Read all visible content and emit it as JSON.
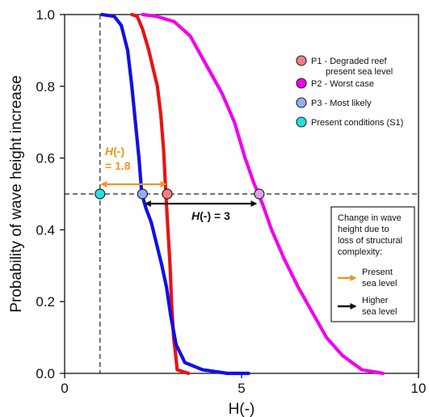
{
  "chart_data": {
    "type": "line",
    "title": "",
    "xlabel": "H(-)",
    "ylabel": "Probability of wave height increase",
    "xlim": [
      0,
      10
    ],
    "ylim": [
      0,
      1.0
    ],
    "xticks": [
      "0",
      "5",
      "10"
    ],
    "yticks": [
      "0.0",
      "0.2",
      "0.4",
      "0.6",
      "0.8",
      "1.0"
    ],
    "grid": false,
    "legend_position": "top-right",
    "series": [
      {
        "name": "P1 - Degraded reef present sea level",
        "color": "#e81414",
        "x": [
          1.9,
          2.05,
          2.2,
          2.38,
          2.5,
          2.62,
          2.72,
          2.8,
          2.86,
          2.92,
          2.98,
          3.02,
          3.08,
          3.14,
          3.18,
          3.5
        ],
        "y": [
          1.0,
          0.995,
          0.96,
          0.9,
          0.85,
          0.8,
          0.72,
          0.62,
          0.5,
          0.4,
          0.3,
          0.2,
          0.1,
          0.05,
          0.01,
          0.0
        ]
      },
      {
        "name": "P2 - Worst case",
        "color": "#f000f0",
        "x": [
          2.2,
          2.6,
          3.1,
          3.55,
          4.0,
          4.45,
          4.8,
          5.1,
          5.35,
          5.6,
          5.85,
          6.2,
          6.6,
          7.0,
          7.4,
          7.85,
          8.4,
          9.0
        ],
        "y": [
          1.0,
          0.995,
          0.98,
          0.94,
          0.86,
          0.78,
          0.7,
          0.6,
          0.53,
          0.47,
          0.4,
          0.32,
          0.24,
          0.17,
          0.1,
          0.05,
          0.01,
          0.0
        ]
      },
      {
        "name": "P3 - Most likely",
        "color": "#1010e8",
        "x": [
          1.05,
          1.4,
          1.6,
          1.78,
          1.9,
          2.0,
          2.1,
          2.18,
          2.3,
          2.45,
          2.6,
          2.75,
          2.88,
          3.0,
          3.15,
          3.4,
          3.9,
          4.6,
          5.2
        ],
        "y": [
          1.0,
          0.995,
          0.97,
          0.9,
          0.8,
          0.7,
          0.6,
          0.5,
          0.46,
          0.42,
          0.36,
          0.3,
          0.24,
          0.16,
          0.08,
          0.03,
          0.01,
          0.0,
          0.0
        ]
      }
    ],
    "points": [
      {
        "name": "Present conditions (S1)",
        "x": 1.0,
        "y": 0.5,
        "color": "#22e0e0"
      },
      {
        "name": "P3 - Most likely",
        "x": 2.2,
        "y": 0.5,
        "color": "#8fb0f0"
      },
      {
        "name": "P1 - Degraded reef present sea level",
        "x": 2.9,
        "y": 0.5,
        "color": "#f08080"
      },
      {
        "name": "P2 - Worst case",
        "x": 5.5,
        "y": 0.5,
        "color": "#e0a0e8"
      }
    ],
    "reference_lines": {
      "horizontal_y": 0.5,
      "vertical_x": 1.0
    },
    "annotations": [
      {
        "text_italic": "H",
        "text_rest": "(-)",
        "text_line2": "= 1.8",
        "color": "#f0961e",
        "from_x": 1.0,
        "to_x": 2.9,
        "y": 0.5
      },
      {
        "text_italic": "H",
        "text_rest": "(-) = 3",
        "color": "#111111",
        "from_x": 2.2,
        "to_x": 5.5,
        "y": 0.5
      }
    ],
    "legend": [
      {
        "label_line1": "P1 - Degraded reef",
        "label_line2": "present sea level",
        "color": "#f08080"
      },
      {
        "label_line1": "P2 - Worst case",
        "color": "#f000f0"
      },
      {
        "label_line1": "P3 - Most likely",
        "color": "#8fb0f0"
      },
      {
        "label_line1": "Present conditions (S1)",
        "color": "#22e0e0"
      }
    ],
    "arrow_legend": {
      "title_lines": [
        "Change in wave",
        "height due to",
        "loss of structural",
        "complexity:"
      ],
      "items": [
        {
          "label_lines": [
            "Present",
            "sea level"
          ],
          "color": "#f0961e"
        },
        {
          "label_lines": [
            "Higher",
            "sea level"
          ],
          "color": "#111111"
        }
      ]
    }
  }
}
